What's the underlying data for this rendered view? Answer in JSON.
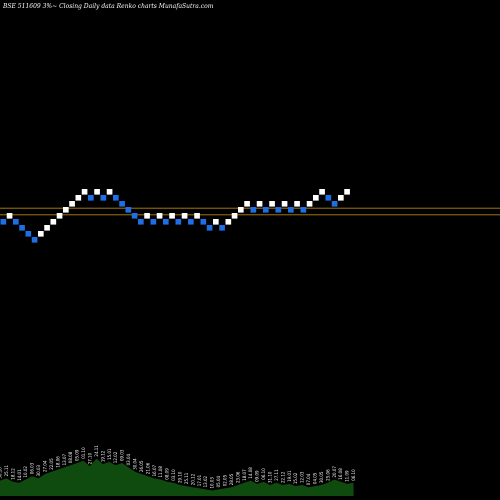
{
  "chart_data": {
    "type": "renko",
    "title": "BSE 511609 3%~  Closing Daily data  Renko  charts MunafaSutra.com",
    "colors": {
      "background": "#000000",
      "up_brick": "#ffffff",
      "down_brick": "#1e6fe6",
      "reference_line": "#b8860b",
      "volume": "#0f4a0f"
    },
    "bricks": [
      {
        "direction": "down",
        "level": 10
      },
      {
        "direction": "up",
        "level": 11
      },
      {
        "direction": "down",
        "level": 10
      },
      {
        "direction": "down",
        "level": 9
      },
      {
        "direction": "down",
        "level": 8
      },
      {
        "direction": "down",
        "level": 7
      },
      {
        "direction": "up",
        "level": 8
      },
      {
        "direction": "up",
        "level": 9
      },
      {
        "direction": "up",
        "level": 10
      },
      {
        "direction": "up",
        "level": 11
      },
      {
        "direction": "up",
        "level": 12
      },
      {
        "direction": "up",
        "level": 13
      },
      {
        "direction": "up",
        "level": 14
      },
      {
        "direction": "up",
        "level": 15
      },
      {
        "direction": "down",
        "level": 14
      },
      {
        "direction": "up",
        "level": 15
      },
      {
        "direction": "down",
        "level": 14
      },
      {
        "direction": "up",
        "level": 15
      },
      {
        "direction": "down",
        "level": 14
      },
      {
        "direction": "down",
        "level": 13
      },
      {
        "direction": "down",
        "level": 12
      },
      {
        "direction": "down",
        "level": 11
      },
      {
        "direction": "down",
        "level": 10
      },
      {
        "direction": "up",
        "level": 11
      },
      {
        "direction": "down",
        "level": 10
      },
      {
        "direction": "up",
        "level": 11
      },
      {
        "direction": "down",
        "level": 10
      },
      {
        "direction": "up",
        "level": 11
      },
      {
        "direction": "down",
        "level": 10
      },
      {
        "direction": "up",
        "level": 11
      },
      {
        "direction": "down",
        "level": 10
      },
      {
        "direction": "up",
        "level": 11
      },
      {
        "direction": "down",
        "level": 10
      },
      {
        "direction": "down",
        "level": 9
      },
      {
        "direction": "up",
        "level": 10
      },
      {
        "direction": "down",
        "level": 9
      },
      {
        "direction": "up",
        "level": 10
      },
      {
        "direction": "up",
        "level": 11
      },
      {
        "direction": "up",
        "level": 12
      },
      {
        "direction": "up",
        "level": 13
      },
      {
        "direction": "down",
        "level": 12
      },
      {
        "direction": "up",
        "level": 13
      },
      {
        "direction": "down",
        "level": 12
      },
      {
        "direction": "up",
        "level": 13
      },
      {
        "direction": "down",
        "level": 12
      },
      {
        "direction": "up",
        "level": 13
      },
      {
        "direction": "down",
        "level": 12
      },
      {
        "direction": "up",
        "level": 13
      },
      {
        "direction": "down",
        "level": 12
      },
      {
        "direction": "up",
        "level": 13
      },
      {
        "direction": "up",
        "level": 14
      },
      {
        "direction": "up",
        "level": 15
      },
      {
        "direction": "down",
        "level": 14
      },
      {
        "direction": "down",
        "level": 13
      },
      {
        "direction": "up",
        "level": 14
      },
      {
        "direction": "up",
        "level": 15
      }
    ],
    "reference_levels": [
      12.8,
      11.7
    ],
    "volume": [
      14,
      16,
      13,
      12,
      15,
      18,
      16,
      20,
      22,
      24,
      26,
      28,
      30,
      32,
      27,
      34,
      29,
      31,
      28,
      30,
      26,
      22,
      20,
      18,
      16,
      15,
      13,
      12,
      10,
      9,
      8,
      7,
      6,
      5,
      6,
      7,
      8,
      10,
      12,
      14,
      11,
      13,
      10,
      12,
      10,
      11,
      9,
      10,
      8,
      9,
      10,
      12,
      15,
      13,
      11,
      12
    ],
    "volume_labels": [
      "30.10",
      "25.11",
      "18.12",
      "14.01",
      "10.02",
      "06.03",
      "30.03",
      "27.04",
      "22.05",
      "18.06",
      "13.07",
      "08.08",
      "05.09",
      "01.10",
      "27.10",
      "24.11",
      "19.12",
      "15.01",
      "12.02",
      "09.03",
      "03.04",
      "30.04",
      "26.05",
      "21.06",
      "16.07",
      "11.08",
      "08.09",
      "03.10",
      "29.10",
      "25.11",
      "20.12",
      "17.01",
      "13.02",
      "10.03",
      "05.04",
      "02.05",
      "28.05",
      "23.06",
      "18.07",
      "14.08",
      "09.09",
      "06.10",
      "31.10",
      "27.11",
      "22.12",
      "19.01",
      "15.02",
      "12.03",
      "07.04",
      "04.05",
      "30.05",
      "25.06",
      "20.07",
      "16.08",
      "11.09",
      "06.10"
    ],
    "ylim": [
      0,
      20
    ],
    "grid": false
  }
}
